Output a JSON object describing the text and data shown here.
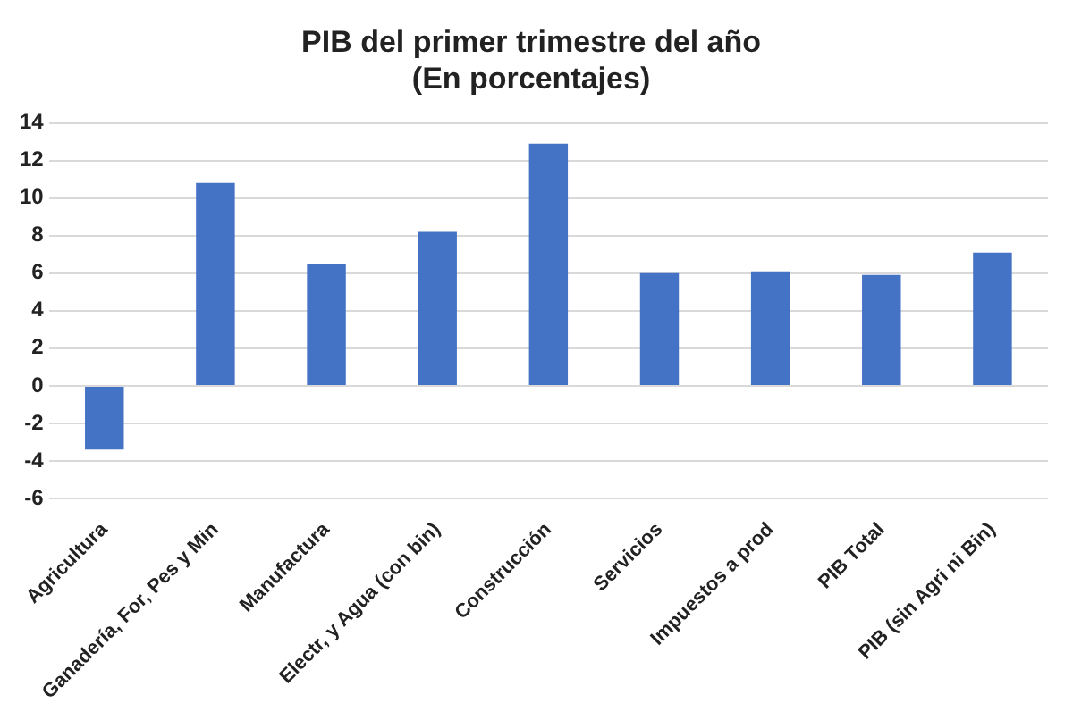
{
  "chart_data": {
    "type": "bar",
    "title": "PIB del primer trimestre del año\n(En porcentajes)",
    "categories": [
      "Agricultura",
      "Ganadería, For, Pes y Min",
      "Manufactura",
      "Electr, y Agua (con bin)",
      "Construcción",
      "Servicios",
      "Impuestos a prod",
      "PIB Total",
      "PIB (sin Agri ni Bin)"
    ],
    "values": [
      -3.4,
      10.8,
      6.5,
      8.2,
      12.9,
      6.0,
      6.1,
      5.9,
      7.1
    ],
    "color": "#4472c4",
    "ylim": [
      -6,
      14
    ],
    "yticks": [
      -6,
      -4,
      -2,
      0,
      2,
      4,
      6,
      8,
      10,
      12,
      14
    ],
    "grid": "y"
  }
}
